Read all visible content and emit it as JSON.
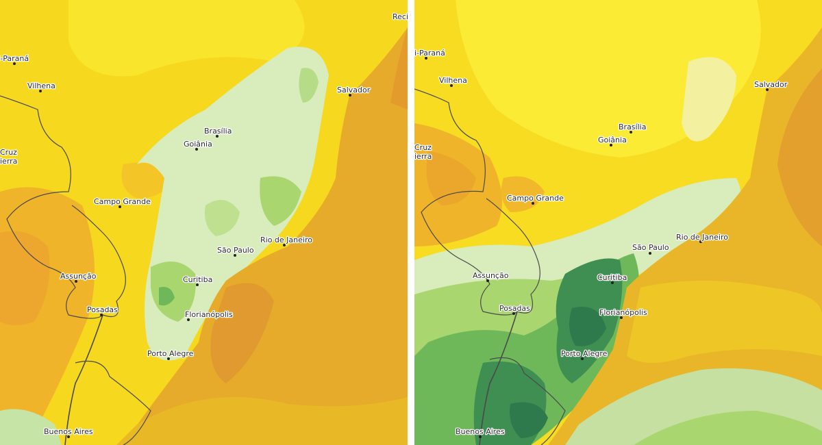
{
  "maps": [
    {
      "id": "left",
      "cities": [
        {
          "name": "Ji-Paraná"
        },
        {
          "name": "Vilhena"
        },
        {
          "name": "Cruz"
        },
        {
          "name": "ierra"
        },
        {
          "name": "Campo Grande"
        },
        {
          "name": "Assunção"
        },
        {
          "name": "Posadas"
        },
        {
          "name": "Buenos Aires"
        },
        {
          "name": "Brasília"
        },
        {
          "name": "Goiânia"
        },
        {
          "name": "São Paulo"
        },
        {
          "name": "Rio de Janeiro"
        },
        {
          "name": "Curitiba"
        },
        {
          "name": "Florianópolis"
        },
        {
          "name": "Porto Alegre"
        },
        {
          "name": "Salvador"
        },
        {
          "name": "Reci"
        }
      ]
    },
    {
      "id": "right",
      "cities": [
        {
          "name": "i-Paraná"
        },
        {
          "name": "Vilhena"
        },
        {
          "name": "Cruz"
        },
        {
          "name": "ierra"
        },
        {
          "name": "Campo Grande"
        },
        {
          "name": "Assunção"
        },
        {
          "name": "Posadas"
        },
        {
          "name": "Buenos Aires"
        },
        {
          "name": "Brasília"
        },
        {
          "name": "Goiânia"
        },
        {
          "name": "São Paulo"
        },
        {
          "name": "Rio de Janeiro"
        },
        {
          "name": "Curitiba"
        },
        {
          "name": "Florianópolis"
        },
        {
          "name": "Porto Alegre"
        },
        {
          "name": "Salvador"
        }
      ]
    }
  ],
  "colors": {
    "land_yellow": "#f6d81e",
    "bright_yellow": "#fbf03a",
    "orange": "#f0b42a",
    "dark_orange": "#e6a534",
    "ocean_orange": "#e6ab2a",
    "pale_green": "#d8ecbc",
    "light_green": "#a9d66e",
    "mid_green": "#6fb85a",
    "dark_green": "#3f8f52",
    "deepest_green": "#2f7a4c",
    "border_line": "#4a4a4a"
  }
}
